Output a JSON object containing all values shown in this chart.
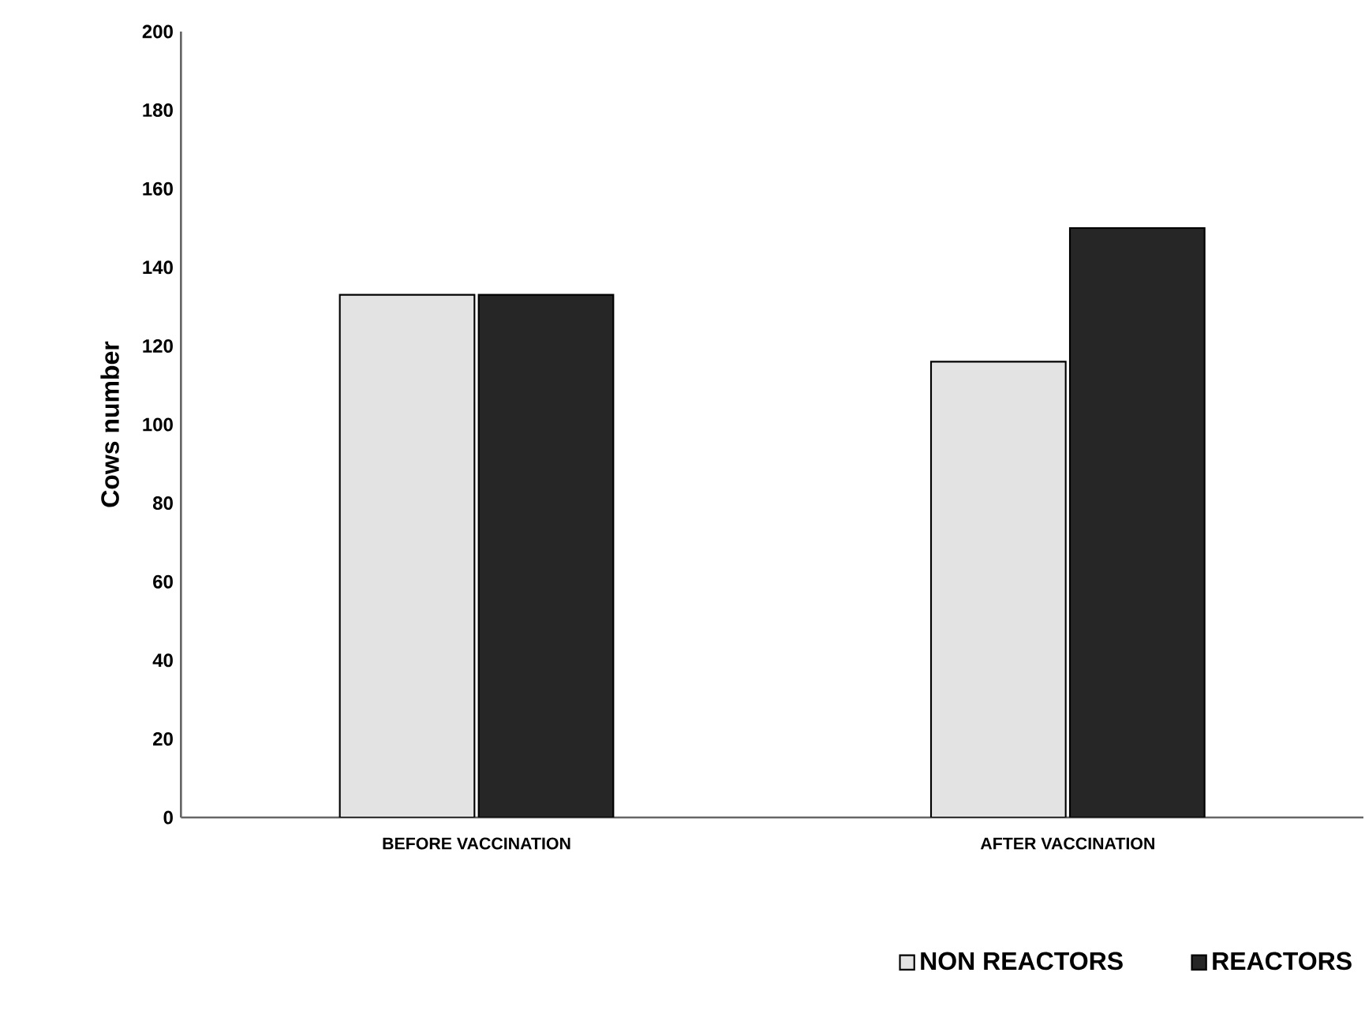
{
  "chart_data": {
    "type": "bar",
    "ylabel": "Cows number",
    "categories": [
      "BEFORE VACCINATION",
      "AFTER VACCINATION"
    ],
    "series": [
      {
        "name": "NON REACTORS",
        "color": "#e3e3e3",
        "values": [
          133,
          116
        ]
      },
      {
        "name": "REACTORS",
        "color": "#262626",
        "values": [
          133,
          150
        ]
      }
    ],
    "ylim": [
      0,
      200
    ],
    "yticks": [
      0,
      20,
      40,
      60,
      80,
      100,
      120,
      140,
      160,
      180,
      200
    ],
    "grid": false,
    "legend": "bottom right"
  }
}
